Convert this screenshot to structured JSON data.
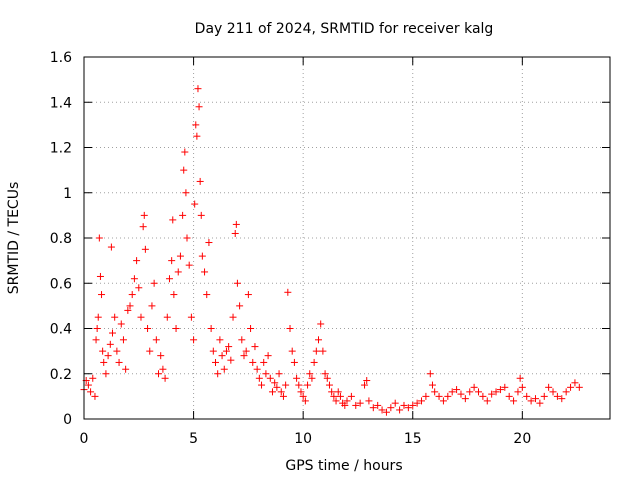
{
  "chart_data": {
    "type": "scatter",
    "title": "Day 211 of 2024, SRMTID for receiver kalg",
    "xlabel": "GPS time / hours",
    "ylabel": "SRMTID / TECUs",
    "xlim": [
      0,
      24
    ],
    "ylim": [
      0,
      1.6
    ],
    "xticks": [
      0,
      5,
      10,
      15,
      20
    ],
    "xtick_labels": [
      "0",
      "5",
      "10",
      "15",
      "20"
    ],
    "yticks": [
      0,
      0.2,
      0.4,
      0.6,
      0.8,
      1,
      1.2,
      1.4,
      1.6
    ],
    "ytick_labels": [
      "0",
      "0.2",
      "0.4",
      "0.6",
      "0.8",
      "1",
      "1.2",
      "1.4",
      "1.6"
    ],
    "grid": true,
    "marker": "+",
    "marker_color": "#ff0000",
    "series": [
      {
        "name": "SRMTID",
        "points": [
          [
            0.0,
            0.13
          ],
          [
            0.1,
            0.17
          ],
          [
            0.2,
            0.15
          ],
          [
            0.3,
            0.12
          ],
          [
            0.4,
            0.18
          ],
          [
            0.5,
            0.1
          ],
          [
            0.55,
            0.35
          ],
          [
            0.6,
            0.4
          ],
          [
            0.65,
            0.45
          ],
          [
            0.7,
            0.8
          ],
          [
            0.75,
            0.63
          ],
          [
            0.8,
            0.55
          ],
          [
            0.85,
            0.3
          ],
          [
            0.9,
            0.25
          ],
          [
            1.0,
            0.2
          ],
          [
            1.1,
            0.28
          ],
          [
            1.2,
            0.33
          ],
          [
            1.25,
            0.76
          ],
          [
            1.3,
            0.38
          ],
          [
            1.4,
            0.45
          ],
          [
            1.5,
            0.3
          ],
          [
            1.6,
            0.25
          ],
          [
            1.7,
            0.42
          ],
          [
            1.8,
            0.35
          ],
          [
            1.9,
            0.22
          ],
          [
            2.0,
            0.48
          ],
          [
            2.1,
            0.5
          ],
          [
            2.2,
            0.55
          ],
          [
            2.3,
            0.62
          ],
          [
            2.4,
            0.7
          ],
          [
            2.5,
            0.58
          ],
          [
            2.6,
            0.45
          ],
          [
            2.7,
            0.85
          ],
          [
            2.75,
            0.9
          ],
          [
            2.8,
            0.75
          ],
          [
            2.9,
            0.4
          ],
          [
            3.0,
            0.3
          ],
          [
            3.1,
            0.5
          ],
          [
            3.2,
            0.6
          ],
          [
            3.3,
            0.35
          ],
          [
            3.4,
            0.2
          ],
          [
            3.5,
            0.28
          ],
          [
            3.6,
            0.22
          ],
          [
            3.7,
            0.18
          ],
          [
            3.8,
            0.45
          ],
          [
            3.9,
            0.62
          ],
          [
            4.0,
            0.7
          ],
          [
            4.05,
            0.88
          ],
          [
            4.1,
            0.55
          ],
          [
            4.2,
            0.4
          ],
          [
            4.3,
            0.65
          ],
          [
            4.4,
            0.72
          ],
          [
            4.5,
            0.9
          ],
          [
            4.55,
            1.1
          ],
          [
            4.6,
            1.18
          ],
          [
            4.65,
            1.0
          ],
          [
            4.7,
            0.8
          ],
          [
            4.8,
            0.68
          ],
          [
            4.9,
            0.45
          ],
          [
            5.0,
            0.35
          ],
          [
            5.05,
            0.95
          ],
          [
            5.1,
            1.3
          ],
          [
            5.15,
            1.25
          ],
          [
            5.2,
            1.46
          ],
          [
            5.25,
            1.38
          ],
          [
            5.3,
            1.05
          ],
          [
            5.35,
            0.9
          ],
          [
            5.4,
            0.72
          ],
          [
            5.5,
            0.65
          ],
          [
            5.6,
            0.55
          ],
          [
            5.7,
            0.78
          ],
          [
            5.8,
            0.4
          ],
          [
            5.9,
            0.3
          ],
          [
            6.0,
            0.25
          ],
          [
            6.1,
            0.2
          ],
          [
            6.2,
            0.35
          ],
          [
            6.3,
            0.28
          ],
          [
            6.4,
            0.22
          ],
          [
            6.5,
            0.3
          ],
          [
            6.6,
            0.32
          ],
          [
            6.7,
            0.26
          ],
          [
            6.8,
            0.45
          ],
          [
            6.9,
            0.82
          ],
          [
            6.95,
            0.86
          ],
          [
            7.0,
            0.6
          ],
          [
            7.1,
            0.5
          ],
          [
            7.2,
            0.35
          ],
          [
            7.3,
            0.28
          ],
          [
            7.4,
            0.3
          ],
          [
            7.5,
            0.55
          ],
          [
            7.6,
            0.4
          ],
          [
            7.7,
            0.25
          ],
          [
            7.8,
            0.32
          ],
          [
            7.9,
            0.22
          ],
          [
            8.0,
            0.18
          ],
          [
            8.1,
            0.15
          ],
          [
            8.2,
            0.25
          ],
          [
            8.3,
            0.2
          ],
          [
            8.4,
            0.28
          ],
          [
            8.5,
            0.18
          ],
          [
            8.6,
            0.12
          ],
          [
            8.7,
            0.16
          ],
          [
            8.8,
            0.14
          ],
          [
            8.9,
            0.2
          ],
          [
            9.0,
            0.12
          ],
          [
            9.1,
            0.1
          ],
          [
            9.2,
            0.15
          ],
          [
            9.3,
            0.56
          ],
          [
            9.4,
            0.4
          ],
          [
            9.5,
            0.3
          ],
          [
            9.6,
            0.25
          ],
          [
            9.7,
            0.18
          ],
          [
            9.8,
            0.15
          ],
          [
            9.9,
            0.12
          ],
          [
            10.0,
            0.1
          ],
          [
            10.1,
            0.08
          ],
          [
            10.2,
            0.15
          ],
          [
            10.3,
            0.2
          ],
          [
            10.4,
            0.18
          ],
          [
            10.5,
            0.25
          ],
          [
            10.6,
            0.3
          ],
          [
            10.7,
            0.35
          ],
          [
            10.8,
            0.42
          ],
          [
            10.9,
            0.3
          ],
          [
            11.0,
            0.2
          ],
          [
            11.1,
            0.18
          ],
          [
            11.2,
            0.15
          ],
          [
            11.3,
            0.12
          ],
          [
            11.4,
            0.1
          ],
          [
            11.5,
            0.08
          ],
          [
            11.6,
            0.12
          ],
          [
            11.7,
            0.1
          ],
          [
            11.8,
            0.07
          ],
          [
            11.9,
            0.06
          ],
          [
            12.0,
            0.08
          ],
          [
            12.2,
            0.1
          ],
          [
            12.4,
            0.06
          ],
          [
            12.6,
            0.07
          ],
          [
            12.8,
            0.15
          ],
          [
            12.9,
            0.17
          ],
          [
            13.0,
            0.08
          ],
          [
            13.2,
            0.05
          ],
          [
            13.4,
            0.06
          ],
          [
            13.6,
            0.04
          ],
          [
            13.8,
            0.03
          ],
          [
            14.0,
            0.05
          ],
          [
            14.2,
            0.07
          ],
          [
            14.4,
            0.04
          ],
          [
            14.6,
            0.06
          ],
          [
            14.8,
            0.05
          ],
          [
            15.0,
            0.06
          ],
          [
            15.2,
            0.07
          ],
          [
            15.4,
            0.08
          ],
          [
            15.6,
            0.1
          ],
          [
            15.8,
            0.2
          ],
          [
            15.9,
            0.15
          ],
          [
            16.0,
            0.12
          ],
          [
            16.2,
            0.1
          ],
          [
            16.4,
            0.08
          ],
          [
            16.6,
            0.1
          ],
          [
            16.8,
            0.12
          ],
          [
            17.0,
            0.13
          ],
          [
            17.2,
            0.11
          ],
          [
            17.4,
            0.09
          ],
          [
            17.6,
            0.12
          ],
          [
            17.8,
            0.14
          ],
          [
            18.0,
            0.12
          ],
          [
            18.2,
            0.1
          ],
          [
            18.4,
            0.08
          ],
          [
            18.6,
            0.11
          ],
          [
            18.8,
            0.12
          ],
          [
            19.0,
            0.13
          ],
          [
            19.2,
            0.14
          ],
          [
            19.4,
            0.1
          ],
          [
            19.6,
            0.08
          ],
          [
            19.8,
            0.12
          ],
          [
            19.9,
            0.18
          ],
          [
            20.0,
            0.14
          ],
          [
            20.2,
            0.1
          ],
          [
            20.4,
            0.08
          ],
          [
            20.6,
            0.09
          ],
          [
            20.8,
            0.07
          ],
          [
            21.0,
            0.1
          ],
          [
            21.2,
            0.14
          ],
          [
            21.4,
            0.12
          ],
          [
            21.6,
            0.1
          ],
          [
            21.8,
            0.09
          ],
          [
            22.0,
            0.12
          ],
          [
            22.2,
            0.14
          ],
          [
            22.4,
            0.16
          ],
          [
            22.6,
            0.14
          ]
        ]
      }
    ]
  }
}
